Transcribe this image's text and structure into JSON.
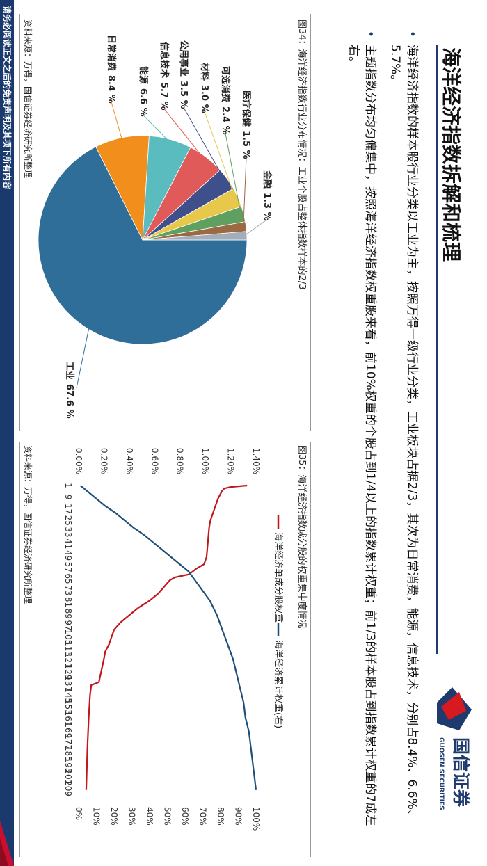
{
  "header": {
    "title": "海洋经济指数拆解和梳理",
    "logo_name": "国信证券",
    "logo_english": "GUOSEN SECURITIES"
  },
  "bullets": [
    "海洋经济指数的样本股行业分类以工业为主，按照万得一级行业分类，工业板块占据2/3，其次为日常消费，能源，信息技术，分别占8.4%、6.6%、5.7%。",
    "主题指数分布均匀偏集中，按照海洋经济指数权重股来看，前10%权重的个股占到1/4以上的指数累计权重；前1/3的样本股占到指数累计权重的7成左右。"
  ],
  "chart_data": [
    {
      "type": "pie",
      "title": "图34：海洋经济指数行业分布情况：工业个股占整体指数样本的2/3",
      "source": "资料来源：万得，国信证券经济研究所整理",
      "categories": [
        "工业",
        "日常消费",
        "能源",
        "信息技术",
        "公用事业",
        "材料",
        "可选消费",
        "医疗保健",
        "金融"
      ],
      "values": [
        67.6,
        8.4,
        6.6,
        5.7,
        3.5,
        3.0,
        2.4,
        1.5,
        1.3
      ],
      "value_labels": [
        "67.6 %",
        "8.4 %",
        "6.6 %",
        "5.7 %",
        "3.5 %",
        "3.0 %",
        "2.4 %",
        "1.5 %",
        "1.3 %"
      ],
      "colors": [
        "#2f6e99",
        "#f28e1c",
        "#5bbcbf",
        "#e05a5a",
        "#3f4f8c",
        "#e8c84a",
        "#5fa060",
        "#9b6a45",
        "#a4aebb"
      ]
    },
    {
      "type": "line",
      "title": "图35：海洋经济指数成分股的权重集中度情况",
      "source": "资料来源：万得，国信证券经济研究所整理",
      "xlim": [
        1,
        213
      ],
      "xticks": [
        1,
        9,
        17,
        25,
        33,
        41,
        49,
        57,
        65,
        73,
        81,
        89,
        97,
        105,
        113,
        121,
        129,
        137,
        145,
        153,
        161,
        169,
        177,
        185,
        193,
        201,
        209
      ],
      "ylim": [
        0,
        1.4
      ],
      "yticks": [
        {
          "value": 0,
          "label": "0.00%"
        },
        {
          "value": 0.2,
          "label": "0.20%"
        },
        {
          "value": 0.4,
          "label": "0.40%"
        },
        {
          "value": 0.6,
          "label": "0.60%"
        },
        {
          "value": 0.8,
          "label": "0.80%"
        },
        {
          "value": 1.0,
          "label": "1.00%"
        },
        {
          "value": 1.2,
          "label": "1.20%"
        },
        {
          "value": 1.4,
          "label": "1.40%"
        }
      ],
      "y2lim": [
        0,
        100
      ],
      "y2ticks": [
        {
          "value": 0,
          "label": "0%"
        },
        {
          "value": 10,
          "label": "10%"
        },
        {
          "value": 20,
          "label": "20%"
        },
        {
          "value": 30,
          "label": "30%"
        },
        {
          "value": 40,
          "label": "40%"
        },
        {
          "value": 50,
          "label": "50%"
        },
        {
          "value": 60,
          "label": "60%"
        },
        {
          "value": 70,
          "label": "70%"
        },
        {
          "value": 80,
          "label": "80%"
        },
        {
          "value": 90,
          "label": "90%"
        },
        {
          "value": 100,
          "label": "100%"
        }
      ],
      "series": [
        {
          "name": "海洋经济单成分股权重",
          "color": "#c0161d",
          "x": [
            1,
            2,
            3,
            5,
            10,
            15,
            20,
            25,
            30,
            40,
            50,
            55,
            58,
            60,
            62,
            64,
            66,
            70,
            75,
            80,
            85,
            90,
            95,
            100,
            105,
            110,
            115,
            120,
            128,
            136,
            138,
            145,
            160,
            180,
            210
          ],
          "values": [
            1.33,
            1.2,
            1.15,
            1.13,
            1.1,
            1.08,
            1.06,
            1.04,
            1.03,
            1.02,
            1.01,
            0.99,
            0.93,
            0.9,
            0.87,
            0.76,
            0.72,
            0.68,
            0.63,
            0.56,
            0.47,
            0.4,
            0.33,
            0.28,
            0.26,
            0.24,
            0.21,
            0.2,
            0.18,
            0.16,
            0.1,
            0.09,
            0.08,
            0.07,
            0.06
          ]
        },
        {
          "name": "海洋经济累计权重(右)",
          "color": "#1f4e79",
          "axis": "y2",
          "x": [
            1,
            5,
            10,
            15,
            20,
            25,
            30,
            35,
            40,
            45,
            50,
            55,
            60,
            65,
            70,
            75,
            80,
            90,
            100,
            110,
            120,
            130,
            140,
            150,
            160,
            170,
            180,
            190,
            200,
            210
          ],
          "values": [
            1,
            5,
            10,
            15,
            21,
            26,
            31,
            37,
            42,
            47,
            52,
            57,
            62,
            65,
            68,
            71,
            74,
            78,
            81,
            84,
            87,
            89,
            91,
            93,
            94,
            96,
            97,
            98,
            99,
            100
          ]
        }
      ]
    }
  ],
  "footer": {
    "disclaimer": "请务必阅读正文之后的免责声明及其项下所有内容"
  }
}
